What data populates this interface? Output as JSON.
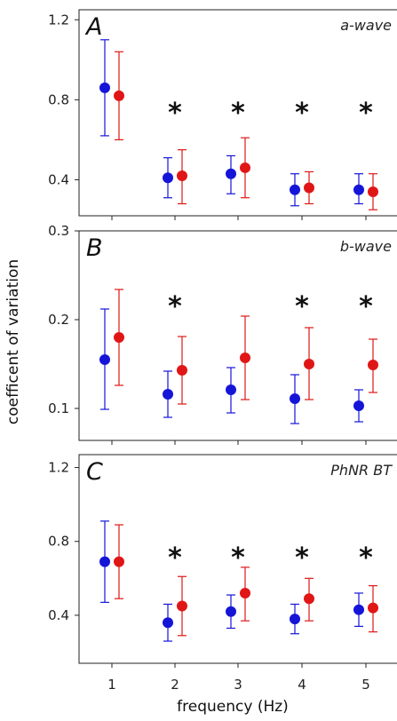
{
  "chart_data": {
    "type": "scatter",
    "ylabel": "coefficent of variation",
    "xlabel": "frequency (Hz)",
    "x_categories": [
      "1",
      "2",
      "3",
      "4",
      "5"
    ],
    "series_colors": {
      "blue": "#1515d8",
      "red": "#e01616"
    },
    "panels": [
      {
        "letter": "A",
        "title": "a-wave",
        "ylim": [
          0.22,
          1.25
        ],
        "yticks": [
          0.4,
          0.8,
          1.2
        ],
        "ytick_labels": [
          "0.4",
          "0.8",
          "1.2"
        ],
        "significant": [
          false,
          true,
          true,
          true,
          true
        ],
        "series": [
          {
            "color": "blue",
            "mean": [
              0.86,
              0.41,
              0.43,
              0.35,
              0.35
            ],
            "low": [
              0.62,
              0.31,
              0.33,
              0.27,
              0.28
            ],
            "high": [
              1.1,
              0.51,
              0.52,
              0.43,
              0.43
            ]
          },
          {
            "color": "red",
            "mean": [
              0.82,
              0.42,
              0.46,
              0.36,
              0.34
            ],
            "low": [
              0.6,
              0.28,
              0.31,
              0.28,
              0.25
            ],
            "high": [
              1.04,
              0.55,
              0.61,
              0.44,
              0.43
            ]
          }
        ]
      },
      {
        "letter": "B",
        "title": "b-wave",
        "ylim": [
          0.064,
          0.3
        ],
        "yticks": [
          0.1,
          0.2,
          0.3
        ],
        "ytick_labels": [
          "0.1",
          "0.2",
          "0.3"
        ],
        "significant": [
          false,
          true,
          false,
          true,
          true
        ],
        "series": [
          {
            "color": "blue",
            "mean": [
              0.155,
              0.116,
              0.121,
              0.111,
              0.103
            ],
            "low": [
              0.099,
              0.09,
              0.095,
              0.083,
              0.085
            ],
            "high": [
              0.212,
              0.142,
              0.146,
              0.138,
              0.121
            ]
          },
          {
            "color": "red",
            "mean": [
              0.18,
              0.143,
              0.157,
              0.15,
              0.149
            ],
            "low": [
              0.126,
              0.105,
              0.11,
              0.11,
              0.118
            ],
            "high": [
              0.234,
              0.181,
              0.204,
              0.191,
              0.178
            ]
          }
        ]
      },
      {
        "letter": "C",
        "title": "PhNR BT",
        "ylim": [
          0.14,
          1.27
        ],
        "yticks": [
          0.4,
          0.8,
          1.2
        ],
        "ytick_labels": [
          "0.4",
          "0.8",
          "1.2"
        ],
        "significant": [
          false,
          true,
          true,
          true,
          true
        ],
        "series": [
          {
            "color": "blue",
            "mean": [
              0.69,
              0.36,
              0.42,
              0.38,
              0.43
            ],
            "low": [
              0.47,
              0.26,
              0.33,
              0.3,
              0.34
            ],
            "high": [
              0.91,
              0.46,
              0.51,
              0.46,
              0.52
            ]
          },
          {
            "color": "red",
            "mean": [
              0.69,
              0.45,
              0.52,
              0.49,
              0.44
            ],
            "low": [
              0.49,
              0.29,
              0.37,
              0.37,
              0.31
            ],
            "high": [
              0.89,
              0.61,
              0.66,
              0.6,
              0.56
            ]
          }
        ]
      }
    ],
    "significance_marker": "*"
  }
}
